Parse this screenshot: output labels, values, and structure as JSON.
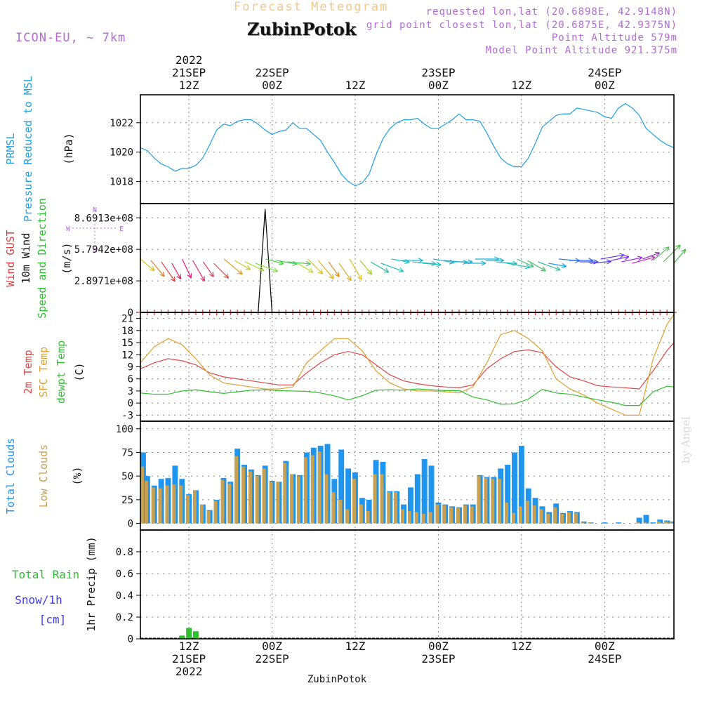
{
  "header": {
    "title": "Forecast Meteogram",
    "location": "ZubinPotok",
    "model": "ICON-EU, ~ 7km",
    "requested": "requested lon,lat (20.6898E, 42.9148N)",
    "closest": "grid point closest lon,lat (20.6875E, 42.9375N)",
    "point_altitude": "Point Altitude 579m",
    "model_altitude": "Model Point Altitude 921.375m"
  },
  "footer": {
    "location": "ZubinPotok",
    "credit": "by Angel"
  },
  "time_axis": {
    "start_hour": 5,
    "end_hour": 82,
    "top_labels": [
      {
        "hour": 12,
        "lines": [
          "2022",
          "21SEP",
          "12Z"
        ]
      },
      {
        "hour": 24,
        "lines": [
          "22SEP",
          "00Z"
        ]
      },
      {
        "hour": 36,
        "lines": [
          "12Z"
        ]
      },
      {
        "hour": 48,
        "lines": [
          "23SEP",
          "00Z"
        ]
      },
      {
        "hour": 60,
        "lines": [
          "12Z"
        ]
      },
      {
        "hour": 72,
        "lines": [
          "24SEP",
          "00Z"
        ]
      }
    ],
    "bottom_labels": [
      {
        "hour": 12,
        "lines": [
          "12Z",
          "21SEP",
          "2022"
        ]
      },
      {
        "hour": 24,
        "lines": [
          "00Z",
          "22SEP"
        ]
      },
      {
        "hour": 36,
        "lines": [
          "12Z"
        ]
      },
      {
        "hour": 48,
        "lines": [
          "00Z",
          "23SEP"
        ]
      },
      {
        "hour": 60,
        "lines": [
          "12Z"
        ]
      },
      {
        "hour": 72,
        "lines": [
          "00Z",
          "24SEP"
        ]
      }
    ]
  },
  "colors": {
    "pressure": "#1ea0e6",
    "gust": "#e03c3c",
    "wind_line": "#000000",
    "t2m": "#e04848",
    "sfc": "#e0a030",
    "dewpt": "#2fc02f",
    "total_clouds": "#1e96f0",
    "low_clouds": "#c8a050",
    "rain": "#2fc02f",
    "snow": "#3c3cf0",
    "grid": "#888888"
  },
  "chart_data": [
    {
      "type": "line",
      "panel": "pressure",
      "ylabel_lines": [
        "PRMSL",
        "Pressure Reduced to MSL"
      ],
      "unit": "(hPa)",
      "ylim": [
        1016.5,
        1023.9
      ],
      "yticks": [
        1018,
        1020,
        1022
      ],
      "grid": true,
      "series": [
        {
          "name": "PRMSL",
          "color": "#1ea0e6",
          "x": [
            5,
            6,
            7,
            8,
            9,
            10,
            11,
            12,
            13,
            14,
            15,
            16,
            17,
            18,
            19,
            20,
            21,
            22,
            23,
            24,
            25,
            26,
            27,
            28,
            29,
            30,
            31,
            32,
            33,
            34,
            35,
            36,
            37,
            38,
            39,
            40,
            41,
            42,
            43,
            44,
            45,
            46,
            47,
            48,
            49,
            50,
            51,
            52,
            53,
            54,
            55,
            56,
            57,
            58,
            59,
            60,
            61,
            62,
            63,
            64,
            65,
            66,
            67,
            68,
            69,
            70,
            71,
            72,
            73,
            74,
            75,
            76,
            77,
            78,
            79,
            80,
            81,
            82
          ],
          "values": [
            1020.3,
            1020.1,
            1019.6,
            1019.2,
            1019.0,
            1018.7,
            1018.9,
            1018.9,
            1019.1,
            1019.6,
            1020.5,
            1021.5,
            1021.9,
            1021.8,
            1022.1,
            1022.2,
            1022.2,
            1021.9,
            1021.5,
            1021.2,
            1021.4,
            1021.5,
            1022.0,
            1021.6,
            1021.6,
            1021.2,
            1020.8,
            1020.0,
            1019.3,
            1018.5,
            1018.0,
            1017.7,
            1017.9,
            1018.5,
            1019.8,
            1020.9,
            1021.6,
            1022.0,
            1022.2,
            1022.2,
            1022.3,
            1021.9,
            1021.6,
            1021.6,
            1021.9,
            1022.2,
            1022.6,
            1022.2,
            1022.2,
            1022.1,
            1021.3,
            1020.4,
            1019.6,
            1019.2,
            1019.0,
            1019.0,
            1019.6,
            1020.6,
            1021.7,
            1022.1,
            1022.5,
            1022.6,
            1022.6,
            1023.0,
            1022.9,
            1022.8,
            1022.7,
            1022.4,
            1022.3,
            1023.0,
            1023.3,
            1023.0,
            1022.5,
            1021.6,
            1021.2,
            1020.8,
            1020.5,
            1020.3
          ]
        }
      ]
    },
    {
      "type": "line",
      "panel": "wind",
      "ylabel_lines": [
        "Wind GUST",
        "10m Wind",
        "Speed and Direction"
      ],
      "unit": "(m/s)",
      "ylim": [
        0,
        1000000000
      ],
      "ytick_values": [
        0,
        289710000,
        579420000,
        869130000
      ],
      "ytick_labels": [
        "0",
        "2.8971e+08",
        "5.7942e+08",
        "8.6913e+08"
      ],
      "compass": {
        "n": "N",
        "s": "S",
        "w": "W",
        "e": "E"
      },
      "grid": true,
      "series": [
        {
          "name": "Wind GUST",
          "color": "#e03c3c",
          "x": [
            5,
            82
          ],
          "values": [
            0,
            0
          ]
        },
        {
          "name": "10m Wind",
          "color": "#000000",
          "x": [
            5,
            21,
            22,
            23,
            24,
            25,
            82
          ],
          "values": [
            0,
            0,
            0,
            950000000,
            0,
            0,
            0
          ]
        }
      ]
    },
    {
      "type": "line",
      "panel": "temperature",
      "ylabel_lines": [
        "2m Temp",
        "SFC Temp",
        "dewpt Temp"
      ],
      "unit": "(C)",
      "ylim": [
        -4.5,
        22.5
      ],
      "yticks": [
        -3,
        0,
        3,
        6,
        9,
        12,
        15,
        18,
        21
      ],
      "grid": true,
      "series": [
        {
          "name": "2m Temp",
          "color": "#e04848",
          "x": [
            5,
            7,
            9,
            11,
            13,
            15,
            17,
            19,
            21,
            23,
            25,
            27,
            29,
            31,
            33,
            35,
            37,
            39,
            41,
            43,
            45,
            47,
            49,
            51,
            53,
            55,
            57,
            59,
            61,
            63,
            65,
            67,
            69,
            71,
            73,
            75,
            77,
            79,
            81,
            82
          ],
          "values": [
            8.5,
            10,
            11,
            10.5,
            9.5,
            7.5,
            6.5,
            6,
            5.5,
            5,
            4.5,
            4.5,
            7.5,
            10,
            12,
            12.8,
            12,
            9.5,
            7,
            5.5,
            4.8,
            4.3,
            4,
            3.8,
            4.5,
            8.5,
            11,
            12.8,
            13.2,
            12.5,
            9,
            6.5,
            5.5,
            4.3,
            4,
            3.8,
            3.5,
            8,
            13,
            15
          ]
        },
        {
          "name": "SFC Temp",
          "color": "#e0a030",
          "x": [
            5,
            7,
            9,
            11,
            13,
            15,
            17,
            19,
            21,
            23,
            25,
            27,
            29,
            31,
            33,
            35,
            37,
            39,
            41,
            43,
            45,
            47,
            49,
            51,
            53,
            55,
            57,
            59,
            61,
            63,
            65,
            67,
            69,
            71,
            73,
            75,
            77,
            79,
            81,
            82
          ],
          "values": [
            10,
            14,
            16,
            14.5,
            11,
            7,
            5,
            4.5,
            4,
            3.5,
            3.5,
            4,
            10,
            13,
            16,
            16,
            13,
            8,
            5,
            3.5,
            3,
            3,
            2.8,
            2.5,
            4,
            10,
            17,
            18,
            16,
            13,
            6,
            3.5,
            2,
            0,
            -1.5,
            -3,
            -3,
            11,
            19.5,
            22
          ]
        },
        {
          "name": "dewpt Temp",
          "color": "#2fc02f",
          "x": [
            5,
            7,
            9,
            11,
            13,
            15,
            17,
            19,
            21,
            23,
            25,
            27,
            29,
            31,
            33,
            35,
            37,
            39,
            41,
            43,
            45,
            47,
            49,
            51,
            53,
            55,
            57,
            59,
            61,
            63,
            65,
            67,
            69,
            71,
            73,
            75,
            77,
            79,
            81,
            82
          ],
          "values": [
            2.5,
            2.2,
            2.2,
            3,
            3.3,
            2.8,
            2.4,
            2.8,
            3.2,
            3.3,
            3.1,
            3,
            2.9,
            2.5,
            1.8,
            0.8,
            1.8,
            3.2,
            3.3,
            3.2,
            3.5,
            3.3,
            3.1,
            3.1,
            1.5,
            0.8,
            -0.3,
            -0.2,
            1,
            3.4,
            2.5,
            2.2,
            1.5,
            0.8,
            0.2,
            -0.6,
            -0.6,
            2.8,
            4.2,
            4
          ]
        }
      ]
    },
    {
      "type": "bar",
      "panel": "clouds",
      "ylabel_lines": [
        "Total Clouds",
        "Low Clouds"
      ],
      "unit": "(%)",
      "ylim": [
        -7,
        108
      ],
      "yticks": [
        0,
        25,
        50,
        75,
        100
      ],
      "grid": true,
      "x": [
        5,
        6,
        7,
        8,
        9,
        10,
        11,
        12,
        13,
        14,
        15,
        16,
        17,
        18,
        19,
        20,
        21,
        22,
        23,
        24,
        25,
        26,
        27,
        28,
        29,
        30,
        31,
        32,
        33,
        34,
        35,
        36,
        37,
        38,
        39,
        40,
        41,
        42,
        43,
        44,
        45,
        46,
        47,
        48,
        49,
        50,
        51,
        52,
        53,
        54,
        55,
        56,
        57,
        58,
        59,
        60,
        61,
        62,
        63,
        64,
        65,
        66,
        67,
        68,
        69,
        70,
        71,
        72,
        73,
        74,
        75,
        76,
        77,
        78,
        79,
        80,
        81,
        82
      ],
      "series": [
        {
          "name": "Total Clouds",
          "color": "#1e96f0",
          "values": [
            75,
            50,
            40,
            47,
            48,
            61,
            47,
            31,
            35,
            20,
            14,
            25,
            48,
            44,
            79,
            62,
            57,
            51,
            61,
            45,
            44,
            66,
            52,
            51,
            75,
            80,
            82,
            84,
            47,
            78,
            58,
            54,
            27,
            25,
            67,
            65,
            34,
            34,
            20,
            38,
            52,
            68,
            61,
            22,
            20,
            18,
            17,
            20,
            20,
            51,
            49,
            49,
            58,
            62,
            75,
            82,
            37,
            27,
            18,
            12,
            21,
            11,
            13,
            12,
            2,
            1,
            0,
            1,
            0,
            1,
            0,
            0,
            6,
            9,
            1,
            4,
            3,
            2
          ]
        },
        {
          "name": "Low Clouds",
          "color": "#c8a050",
          "values": [
            60,
            45,
            38,
            37,
            40,
            41,
            40,
            30,
            35,
            20,
            13,
            24,
            46,
            42,
            71,
            60,
            55,
            50,
            58,
            44,
            44,
            64,
            52,
            50,
            70,
            72,
            76,
            52,
            33,
            25,
            15,
            47,
            20,
            13,
            52,
            52,
            33,
            33,
            15,
            13,
            12,
            10,
            12,
            20,
            19,
            17,
            16,
            19,
            18,
            50,
            48,
            47,
            47,
            22,
            11,
            18,
            24,
            19,
            15,
            10,
            17,
            10,
            12,
            11,
            1,
            1,
            0,
            0,
            0,
            0,
            0,
            0,
            1,
            1,
            0,
            2,
            2,
            1
          ]
        }
      ]
    },
    {
      "type": "bar",
      "panel": "precip",
      "ylabel_lines": [
        "1hr Precip (mm)"
      ],
      "legend_lines": [
        "Total  Rain",
        "Snow/1h",
        "[cm]"
      ],
      "ylim": [
        0,
        1
      ],
      "yticks": [
        0,
        0.2,
        0.4,
        0.6,
        0.8
      ],
      "grid": true,
      "x": [
        11,
        12,
        13
      ],
      "series": [
        {
          "name": "Total Rain",
          "color": "#2fc02f",
          "values": [
            0.03,
            0.1,
            0.07
          ]
        }
      ]
    }
  ]
}
